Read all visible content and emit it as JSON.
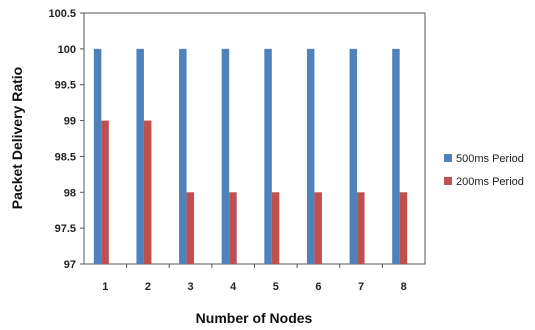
{
  "chart_data": {
    "type": "bar",
    "xlabel": "Number of Nodes",
    "ylabel": "Packet Delivery Ratio",
    "categories": [
      "1",
      "2",
      "3",
      "4",
      "5",
      "6",
      "7",
      "8"
    ],
    "ylim": [
      97,
      100.5
    ],
    "yticks": [
      "97",
      "97.5",
      "98",
      "98.5",
      "99",
      "99.5",
      "100",
      "100.5"
    ],
    "grid": false,
    "legend_position": "right",
    "series": [
      {
        "name": "500ms Period",
        "color": "#4F81BD",
        "values": [
          100,
          100,
          100,
          100,
          100,
          100,
          100,
          100
        ]
      },
      {
        "name": "200ms Period",
        "color": "#C0504D",
        "values": [
          99,
          99,
          98,
          98,
          98,
          98,
          98,
          98
        ]
      }
    ]
  }
}
